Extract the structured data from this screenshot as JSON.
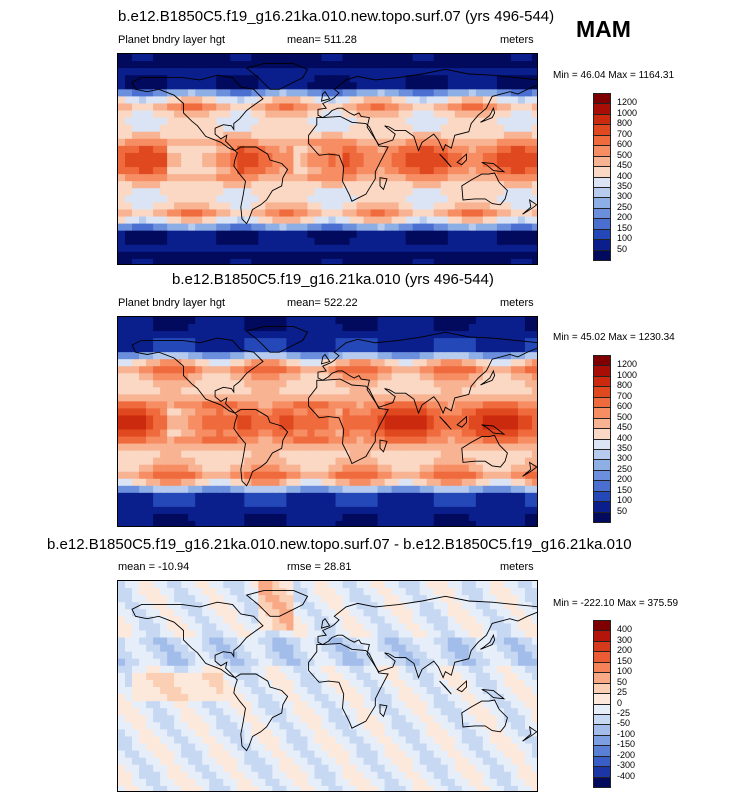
{
  "season": "MAM",
  "chart_data": [
    {
      "type": "heatmap",
      "title": "b.e12.B1850C5.f19_g16.21ka.010.new.topo.surf.07 (yrs 496-544)",
      "left_label": "Planet bndry layer hgt",
      "center_label": "mean= 511.28",
      "units": "meters",
      "min_max": "Min =  46.04 Max = 1164.31",
      "colorbar_levels": [
        "1200",
        "1000",
        "800",
        "700",
        "600",
        "500",
        "450",
        "400",
        "350",
        "300",
        "250",
        "200",
        "150",
        "100",
        "50"
      ]
    },
    {
      "type": "heatmap",
      "title": "b.e12.B1850C5.f19_g16.21ka.010 (yrs 496-544)",
      "left_label": "Planet bndry layer hgt",
      "center_label": "mean= 522.22",
      "units": "meters",
      "min_max": "Min =  45.02 Max = 1230.34",
      "colorbar_levels": [
        "1200",
        "1000",
        "800",
        "700",
        "600",
        "500",
        "450",
        "400",
        "350",
        "300",
        "250",
        "200",
        "150",
        "100",
        "50"
      ]
    },
    {
      "type": "heatmap",
      "title": "b.e12.B1850C5.f19_g16.21ka.010.new.topo.surf.07 - b.e12.B1850C5.f19_g16.21ka.010",
      "left_label": "mean = -10.94",
      "center_label": "rmse =  28.81",
      "units": "meters",
      "min_max": "Min = -222.10 Max = 375.59",
      "colorbar_levels": [
        "400",
        "300",
        "200",
        "150",
        "100",
        "50",
        "25",
        "0",
        "-25",
        "-50",
        "-100",
        "-150",
        "-200",
        "-300",
        "-400"
      ]
    }
  ],
  "colors": {
    "abs_scale": [
      "#7f0000",
      "#a80e05",
      "#cc2a0f",
      "#e0481f",
      "#ef6a3d",
      "#f68d63",
      "#f8b393",
      "#fbd8c4",
      "#dbe4f5",
      "#b6cbee",
      "#8eaee6",
      "#6b8fdc",
      "#4a6fd1",
      "#2448b8",
      "#0a1e8c",
      "#020a5e"
    ],
    "diff_scale": [
      "#7f0000",
      "#b3150a",
      "#d63a1c",
      "#ec5c34",
      "#f6825a",
      "#f9a985",
      "#fbcfb4",
      "#fde9dc",
      "#e6eefa",
      "#c7d8f3",
      "#a3bdeb",
      "#7d9fe1",
      "#5a80d6",
      "#3a5ec7",
      "#1c36a6",
      "#020a5e"
    ]
  }
}
